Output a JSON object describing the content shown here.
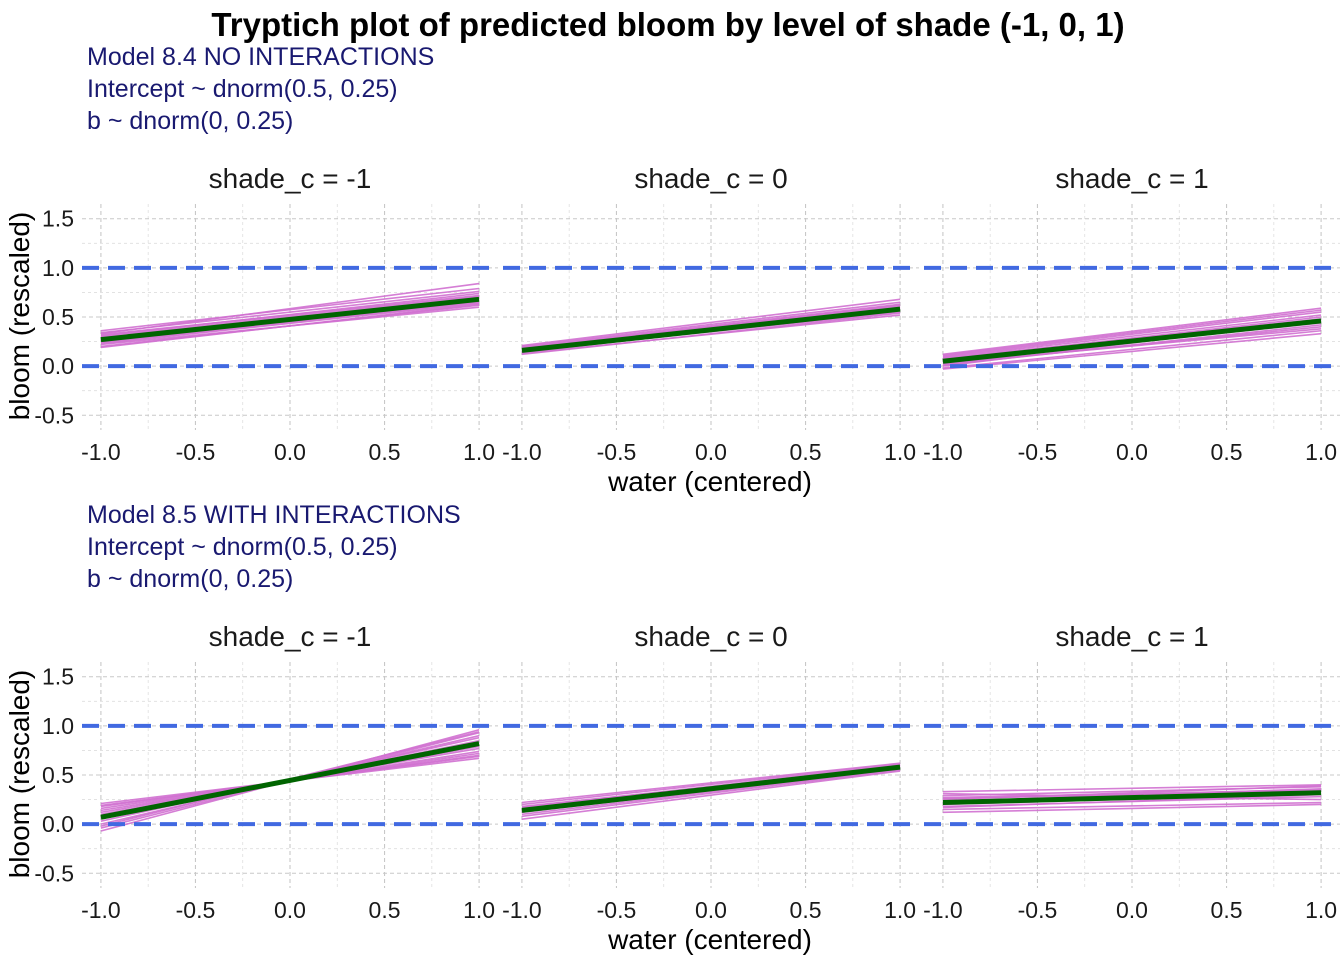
{
  "figure": {
    "title": "Tryptich plot of predicted bloom by level of shade (-1, 0, 1)",
    "colors": {
      "draws": "#d070d0",
      "mean": "#006400",
      "reference": "#4169e1",
      "subtitle": "#191970"
    }
  },
  "chart_data": [
    {
      "type": "line",
      "subtitle_lines": [
        "Model 8.4 NO INTERACTIONS",
        "Intercept ~ dnorm(0.5, 0.25)",
        "b ~ dnorm(0, 0.25)"
      ],
      "xlabel": "water (centered)",
      "ylabel": "bloom (rescaled)",
      "xlim": [
        -1.1,
        1.1
      ],
      "ylim": [
        -0.65,
        1.65
      ],
      "x_ticks": [
        "-1.0",
        "-0.5",
        "0.0",
        "0.5",
        "1.0"
      ],
      "y_ticks": [
        "-0.5",
        "0.0",
        "0.5",
        "1.0",
        "1.5"
      ],
      "grid": true,
      "reference_lines": [
        0,
        1
      ],
      "panels": [
        {
          "strip": "shade_c = -1",
          "mean_line": {
            "x": [
              -1,
              1
            ],
            "y": [
              0.27,
              0.68
            ]
          },
          "draws_y_at_x_minus1": [
            0.33,
            0.2,
            0.3,
            0.25,
            0.36,
            0.22,
            0.28,
            0.31,
            0.24,
            0.34,
            0.19,
            0.29,
            0.26,
            0.32,
            0.23
          ],
          "draws_y_at_x_plus1": [
            0.84,
            0.62,
            0.71,
            0.66,
            0.79,
            0.6,
            0.7,
            0.74,
            0.65,
            0.76,
            0.63,
            0.69,
            0.67,
            0.72,
            0.64
          ]
        },
        {
          "strip": "shade_c = 0",
          "mean_line": {
            "x": [
              -1,
              1
            ],
            "y": [
              0.16,
              0.58
            ]
          },
          "draws_y_at_x_minus1": [
            0.21,
            0.13,
            0.18,
            0.15,
            0.2,
            0.12,
            0.17,
            0.19,
            0.14,
            0.16,
            0.18,
            0.15
          ],
          "draws_y_at_x_plus1": [
            0.68,
            0.52,
            0.62,
            0.56,
            0.65,
            0.54,
            0.6,
            0.63,
            0.57,
            0.59,
            0.61,
            0.55
          ]
        },
        {
          "strip": "shade_c = 1",
          "mean_line": {
            "x": [
              -1,
              1
            ],
            "y": [
              0.05,
              0.46
            ]
          },
          "draws_y_at_x_minus1": [
            0.12,
            -0.03,
            0.08,
            0.02,
            0.1,
            -0.02,
            0.06,
            0.09,
            0.01,
            0.04,
            0.11,
            0.03,
            0.07,
            0.0
          ],
          "draws_y_at_x_plus1": [
            0.59,
            0.33,
            0.48,
            0.4,
            0.55,
            0.36,
            0.46,
            0.52,
            0.42,
            0.44,
            0.57,
            0.38,
            0.5,
            0.47
          ]
        }
      ]
    },
    {
      "type": "line",
      "subtitle_lines": [
        "Model 8.5 WITH INTERACTIONS",
        "Intercept ~ dnorm(0.5, 0.25)",
        "b ~ dnorm(0, 0.25)"
      ],
      "xlabel": "water (centered)",
      "ylabel": "bloom (rescaled)",
      "xlim": [
        -1.1,
        1.1
      ],
      "ylim": [
        -0.65,
        1.65
      ],
      "x_ticks": [
        "-1.0",
        "-0.5",
        "0.0",
        "0.5",
        "1.0"
      ],
      "y_ticks": [
        "-0.5",
        "0.0",
        "0.5",
        "1.0",
        "1.5"
      ],
      "grid": true,
      "reference_lines": [
        0,
        1
      ],
      "panels": [
        {
          "strip": "shade_c = -1",
          "mean_line": {
            "x": [
              -1,
              1
            ],
            "y": [
              0.07,
              0.82
            ]
          },
          "draws_y_at_x_minus1": [
            0.21,
            -0.07,
            0.14,
            0.03,
            0.18,
            -0.04,
            0.1,
            0.16,
            0.0,
            0.06,
            0.12,
            0.08,
            -0.02,
            0.19
          ],
          "draws_y_at_x_plus1": [
            0.67,
            0.96,
            0.74,
            0.88,
            0.7,
            0.93,
            0.79,
            0.72,
            0.9,
            0.85,
            0.77,
            0.81,
            0.94,
            0.69
          ]
        },
        {
          "strip": "shade_c = 0",
          "mean_line": {
            "x": [
              -1,
              1
            ],
            "y": [
              0.14,
              0.58
            ]
          },
          "draws_y_at_x_minus1": [
            0.22,
            0.05,
            0.17,
            0.1,
            0.2,
            0.08,
            0.15,
            0.12,
            0.18,
            0.13
          ],
          "draws_y_at_x_plus1": [
            0.62,
            0.54,
            0.6,
            0.56,
            0.61,
            0.55,
            0.59,
            0.57,
            0.58,
            0.6
          ]
        },
        {
          "strip": "shade_c = 1",
          "mean_line": {
            "x": [
              -1,
              1
            ],
            "y": [
              0.22,
              0.32
            ]
          },
          "draws_y_at_x_minus1": [
            0.33,
            0.12,
            0.26,
            0.18,
            0.29,
            0.15,
            0.23,
            0.2,
            0.31,
            0.25,
            0.17,
            0.27
          ],
          "draws_y_at_x_plus1": [
            0.4,
            0.2,
            0.34,
            0.28,
            0.38,
            0.22,
            0.36,
            0.31,
            0.25,
            0.39,
            0.3,
            0.35
          ]
        }
      ]
    }
  ]
}
